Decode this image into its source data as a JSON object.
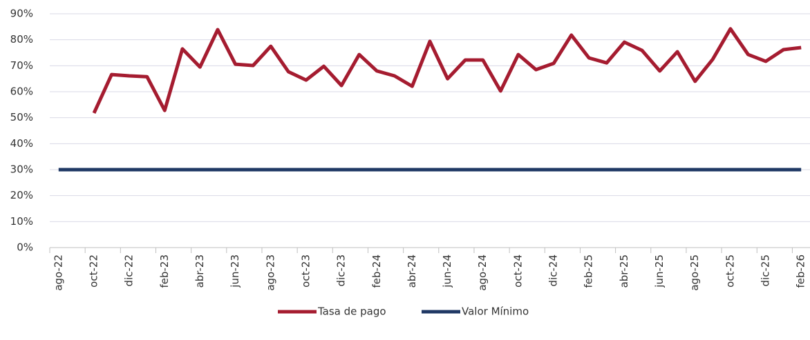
{
  "chart_data": {
    "type": "line",
    "categories": [
      "ago-22",
      null,
      "oct-22",
      null,
      "dic-22",
      null,
      "feb-23",
      null,
      "abr-23",
      null,
      "jun-23",
      null,
      "ago-23",
      null,
      "oct-23",
      null,
      "dic-23",
      null,
      "feb-24",
      null,
      "abr-24",
      null,
      "jun-24",
      null,
      "ago-24",
      null,
      "oct-24",
      null,
      "dic-24",
      null,
      "feb-25",
      null,
      "abr-25",
      null,
      "jun-25",
      null,
      "ago-25",
      null,
      "oct-25",
      null,
      "dic-25",
      null,
      "feb-26"
    ],
    "series": [
      {
        "name": "Tasa de pago",
        "color": "#a51c30",
        "values": [
          null,
          null,
          51.8,
          66.6,
          66.1,
          65.8,
          52.8,
          76.5,
          69.5,
          83.9,
          70.6,
          70.1,
          77.5,
          67.7,
          64.5,
          69.8,
          62.4,
          74.3,
          68.0,
          66.1,
          62.1,
          79.4,
          65.0,
          72.2,
          72.2,
          60.3,
          74.3,
          68.5,
          70.9,
          81.8,
          73.0,
          71.1,
          79.1,
          75.9,
          68.0,
          75.4,
          64.0,
          72.5,
          84.2,
          74.3,
          71.7,
          76.2,
          77.0
        ]
      },
      {
        "name": "Valor Mínimo",
        "color": "#1f3864",
        "values": [
          30,
          30,
          30,
          30,
          30,
          30,
          30,
          30,
          30,
          30,
          30,
          30,
          30,
          30,
          30,
          30,
          30,
          30,
          30,
          30,
          30,
          30,
          30,
          30,
          30,
          30,
          30,
          30,
          30,
          30,
          30,
          30,
          30,
          30,
          30,
          30,
          30,
          30,
          30,
          30,
          30,
          30,
          30
        ]
      }
    ],
    "ylim": [
      0,
      90
    ],
    "yticks": [
      {
        "value": 0,
        "label": "0%"
      },
      {
        "value": 10,
        "label": "10%"
      },
      {
        "value": 20,
        "label": "20%"
      },
      {
        "value": 30,
        "label": "30%"
      },
      {
        "value": 40,
        "label": "40%"
      },
      {
        "value": 50,
        "label": "50%"
      },
      {
        "value": 60,
        "label": "60%"
      },
      {
        "value": 70,
        "label": "70%"
      },
      {
        "value": 80,
        "label": "80%"
      },
      {
        "value": 90,
        "label": "90%"
      }
    ],
    "grid": true,
    "legend": "bottom"
  }
}
